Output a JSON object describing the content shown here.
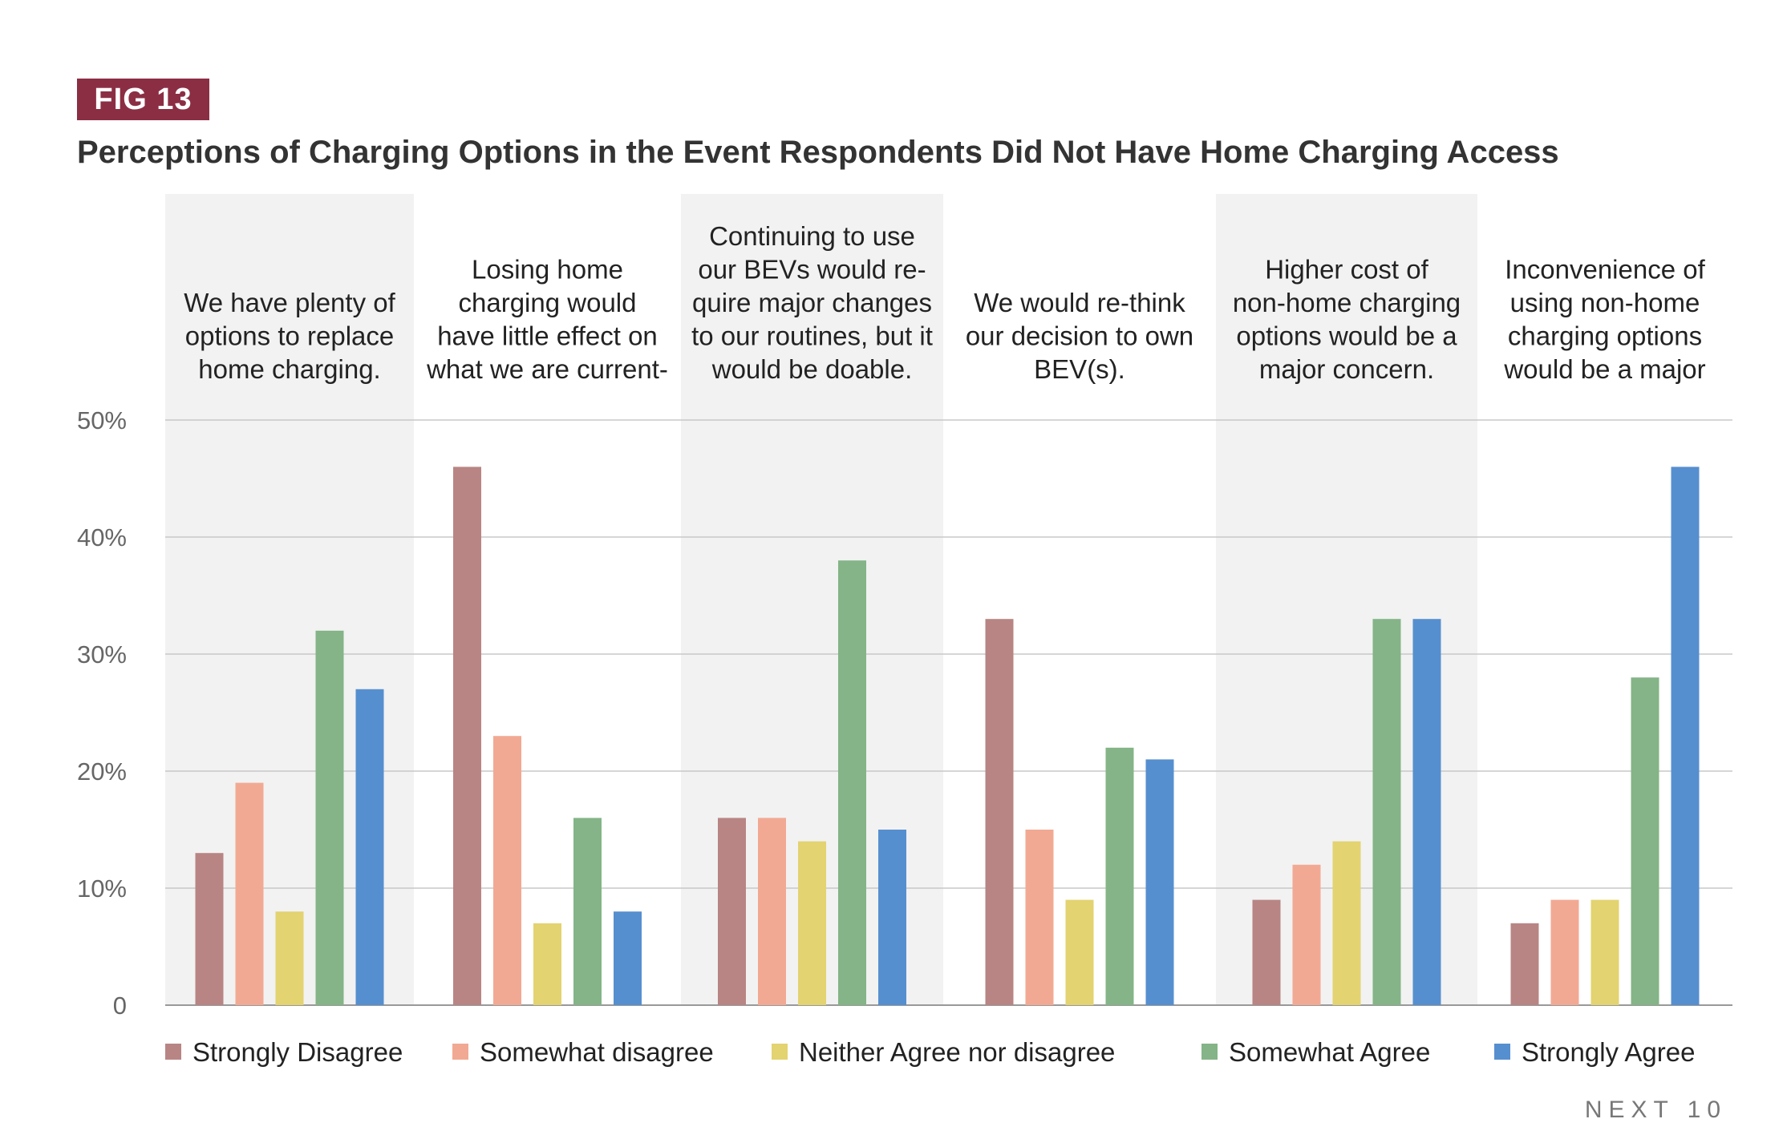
{
  "figure": {
    "badge": "FIG 13",
    "title": "Perceptions of Charging Options in the Event Respondents Did Not Have Home Charging Access",
    "brand": "NEXT 10"
  },
  "colors": {
    "badge": "#8b2e44",
    "shade": "#f2f2f2",
    "grid": "#c8c8c8",
    "series": [
      "#b88584",
      "#f2a993",
      "#e3d371",
      "#84b487",
      "#568fcf"
    ]
  },
  "chart_data": {
    "type": "bar",
    "title": "Perceptions of Charging Options in the Event Respondents Did Not Have Home Charging Access",
    "categories": [
      [
        "We have plenty of",
        "options to replace",
        "home charging."
      ],
      [
        "Losing home",
        "charging would",
        "have little effect on",
        "what we are current-"
      ],
      [
        "Continuing to use",
        "our BEVs would re-",
        "quire major changes",
        "to our routines, but it",
        "would be doable."
      ],
      [
        "We would re-think",
        "our decision to own",
        "BEV(s)."
      ],
      [
        "Higher cost of",
        "non-home charging",
        "options would be a",
        "major concern."
      ],
      [
        "Inconvenience of",
        "using non-home",
        "charging options",
        "would be a major"
      ]
    ],
    "series": [
      {
        "name": "Strongly Disagree",
        "values": [
          13,
          46,
          16,
          33,
          9,
          7
        ]
      },
      {
        "name": "Somewhat disagree",
        "values": [
          19,
          23,
          16,
          15,
          12,
          9
        ]
      },
      {
        "name": "Neither Agree nor disagree",
        "values": [
          8,
          7,
          14,
          9,
          14,
          9
        ]
      },
      {
        "name": "Somewhat Agree",
        "values": [
          32,
          16,
          38,
          22,
          33,
          28
        ]
      },
      {
        "name": "Strongly Agree",
        "values": [
          27,
          8,
          15,
          21,
          33,
          46
        ]
      }
    ],
    "yticks": [
      0,
      10,
      20,
      30,
      40,
      50
    ],
    "ytick_labels": [
      "0",
      "10%",
      "20%",
      "30%",
      "40%",
      "50%"
    ],
    "ylim": [
      0,
      50
    ],
    "grid": true,
    "legend": "bottom",
    "alternating_shading": true,
    "ylabel": "",
    "xlabel": ""
  }
}
